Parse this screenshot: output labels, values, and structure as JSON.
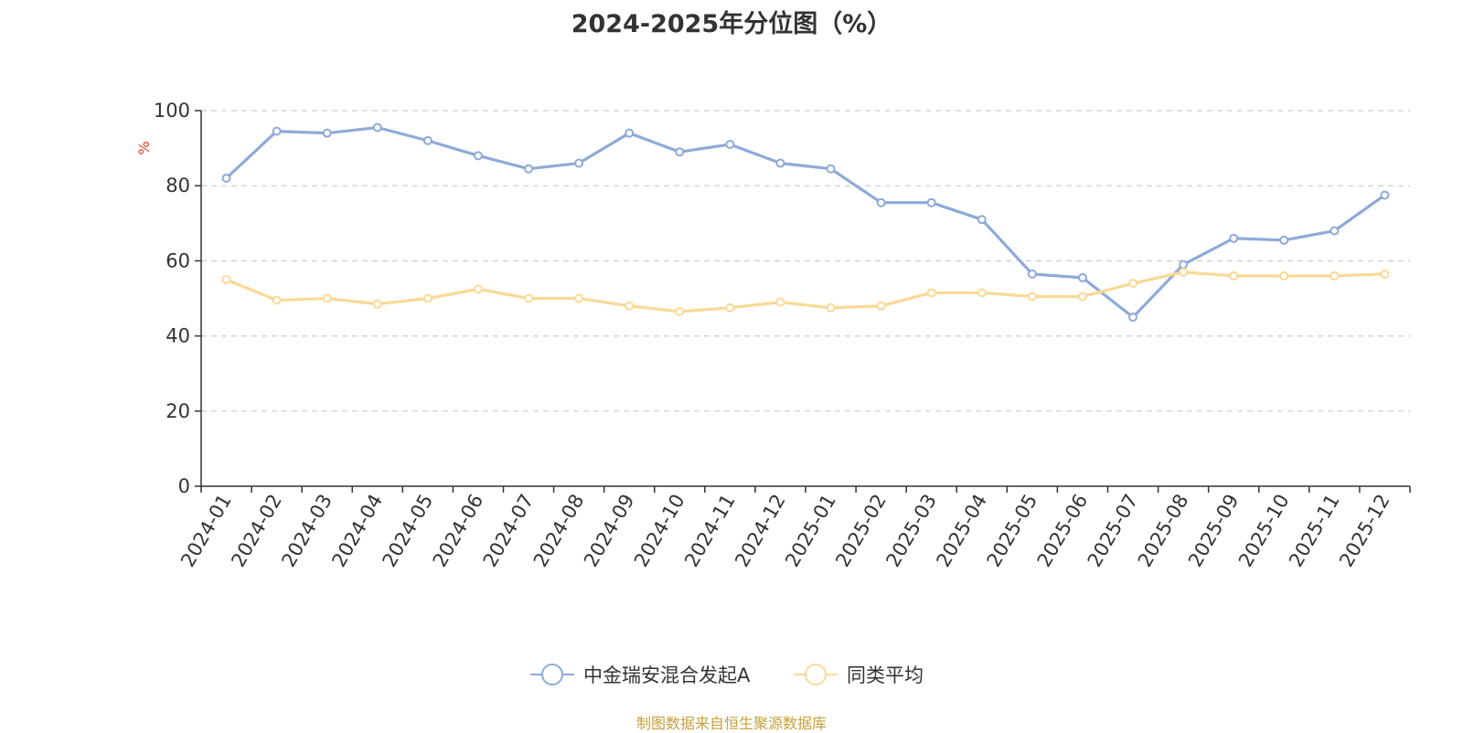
{
  "title": "2024-2025年分位图（%）",
  "footer": "制图数据来自恒生聚源数据库",
  "chart_data": {
    "type": "line",
    "title": "2024-2025年分位图（%）",
    "ylabel": "%",
    "xlabel": "",
    "ylim": [
      0,
      100
    ],
    "yticks": [
      "0",
      "20",
      "40",
      "60",
      "80",
      "100"
    ],
    "grid": true,
    "legend_position": "bottom",
    "categories": [
      "2024-01",
      "2024-02",
      "2024-03",
      "2024-04",
      "2024-05",
      "2024-06",
      "2024-07",
      "2024-08",
      "2024-09",
      "2024-10",
      "2024-11",
      "2024-12",
      "2025-01",
      "2025-02",
      "2025-03",
      "2025-04",
      "2025-05",
      "2025-06",
      "2025-07",
      "2025-08",
      "2025-09",
      "2025-10",
      "2025-11",
      "2025-12"
    ],
    "series": [
      {
        "name": "中金瑞安混合发起A",
        "color": "#8eaad8",
        "values": [
          82,
          94.5,
          94,
          95.5,
          92,
          88,
          84.5,
          86,
          94,
          89,
          91,
          86,
          84.5,
          75.5,
          75.5,
          71,
          56.5,
          55.5,
          45,
          59,
          66,
          65.5,
          68,
          77.5
        ]
      },
      {
        "name": "同类平均",
        "color": "#fad995",
        "values": [
          55,
          49.5,
          50,
          48.5,
          50,
          52.5,
          50,
          50,
          48,
          46.5,
          47.5,
          49,
          47.5,
          48,
          51.5,
          51.5,
          50.5,
          50.5,
          54,
          57,
          56,
          56,
          56,
          56.5
        ]
      }
    ]
  }
}
